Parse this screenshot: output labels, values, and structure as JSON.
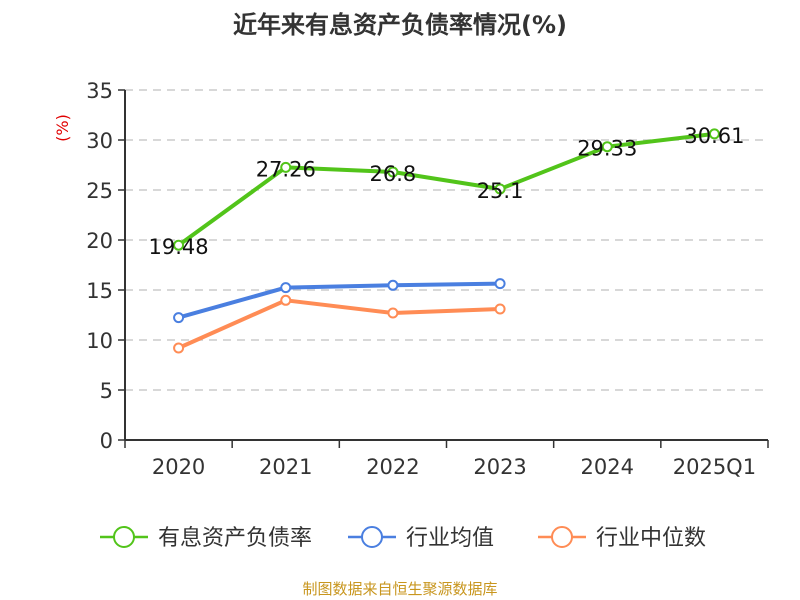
{
  "chart_data": {
    "type": "line",
    "title": "近年来有息资产负债率情况(%)",
    "ylabel": "(%)",
    "xlabel": "",
    "categories": [
      "2020",
      "2021",
      "2022",
      "2023",
      "2024",
      "2025Q1"
    ],
    "ylim": [
      0,
      35
    ],
    "yticks": [
      0,
      5,
      10,
      15,
      20,
      25,
      30,
      35
    ],
    "grid": true,
    "legend_position": "bottom",
    "series": [
      {
        "name": "有息资产负债率",
        "color": "#52c41a",
        "values": [
          19.48,
          27.26,
          26.8,
          25.1,
          29.33,
          30.61
        ],
        "labels": [
          "19.48",
          "27.26",
          "26.8",
          "25.1",
          "29.33",
          "30.61"
        ]
      },
      {
        "name": "行业均值",
        "color": "#4a7fe0",
        "values": [
          12.24,
          15.24,
          15.47,
          15.64,
          null,
          null
        ]
      },
      {
        "name": "行业中位数",
        "color": "#ff8c55",
        "values": [
          9.2,
          13.97,
          12.7,
          13.1,
          null,
          null
        ]
      }
    ]
  },
  "footer": {
    "source": "制图数据来自恒生聚源数据库",
    "color": "#c8961e"
  },
  "colors": {
    "ylabel": "#e00000",
    "axis": "#333333",
    "grid": "#cccccc"
  }
}
